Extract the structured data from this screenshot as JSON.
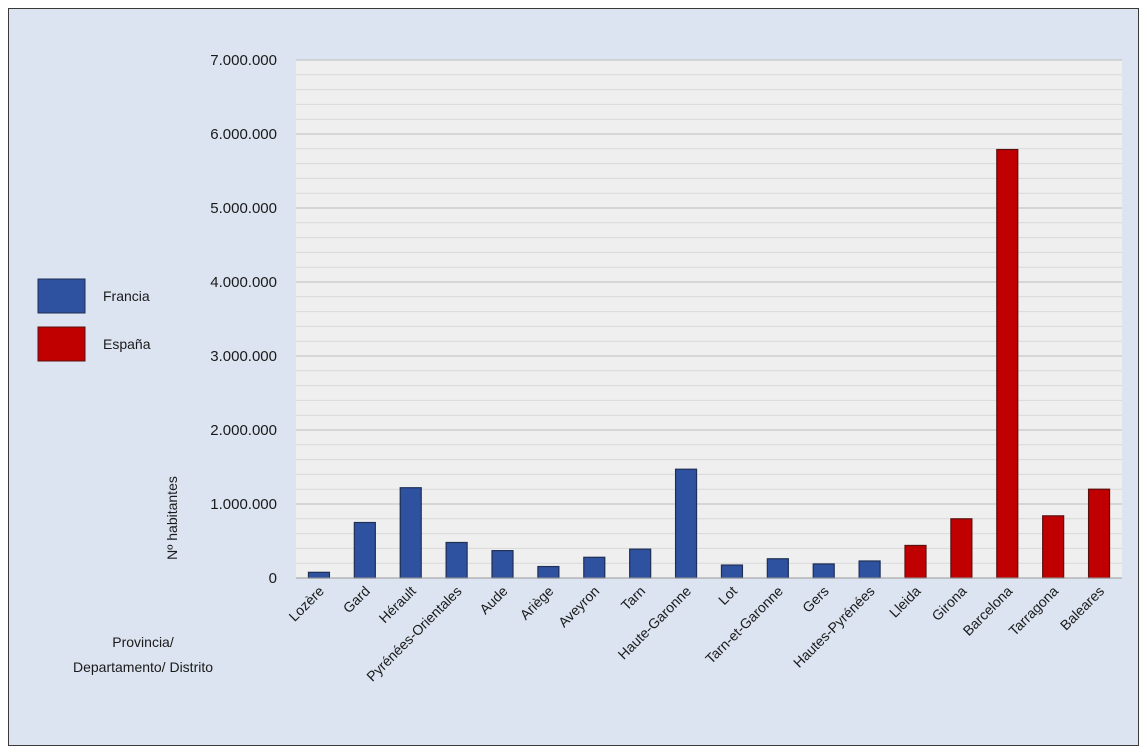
{
  "chart_data": {
    "type": "bar",
    "ylabel": "Nº habitantes",
    "xlabel_lines": [
      "Provincia/",
      "Departamento/ Distrito"
    ],
    "ylim": [
      0,
      7000000
    ],
    "yticks": [
      "0",
      "1.000.000",
      "2.000.000",
      "3.000.000",
      "4.000.000",
      "5.000.000",
      "6.000.000",
      "7.000.000"
    ],
    "grid": true,
    "legend_position": "left",
    "series": [
      {
        "name": "Francia",
        "color": "#2f52a0"
      },
      {
        "name": "España",
        "color": "#c00000"
      }
    ],
    "bars": [
      {
        "label": "Lozère",
        "value": 77000,
        "series": 0
      },
      {
        "label": "Gard",
        "value": 750000,
        "series": 0
      },
      {
        "label": "Hérault",
        "value": 1220000,
        "series": 0
      },
      {
        "label": "Pyrénées-Orientales",
        "value": 480000,
        "series": 0
      },
      {
        "label": "Aude",
        "value": 370000,
        "series": 0
      },
      {
        "label": "Ariège",
        "value": 155000,
        "series": 0
      },
      {
        "label": "Aveyron",
        "value": 280000,
        "series": 0
      },
      {
        "label": "Tarn",
        "value": 390000,
        "series": 0
      },
      {
        "label": "Haute-Garonne",
        "value": 1470000,
        "series": 0
      },
      {
        "label": "Lot",
        "value": 175000,
        "series": 0
      },
      {
        "label": "Tarn-et-Garonne",
        "value": 260000,
        "series": 0
      },
      {
        "label": "Gers",
        "value": 190000,
        "series": 0
      },
      {
        "label": "Hautes-Pyrénées",
        "value": 230000,
        "series": 0
      },
      {
        "label": "Lleida",
        "value": 440000,
        "series": 1
      },
      {
        "label": "Girona",
        "value": 800000,
        "series": 1
      },
      {
        "label": "Barcelona",
        "value": 5790000,
        "series": 1
      },
      {
        "label": "Tarragona",
        "value": 840000,
        "series": 1
      },
      {
        "label": "Baleares",
        "value": 1200000,
        "series": 1
      }
    ]
  }
}
